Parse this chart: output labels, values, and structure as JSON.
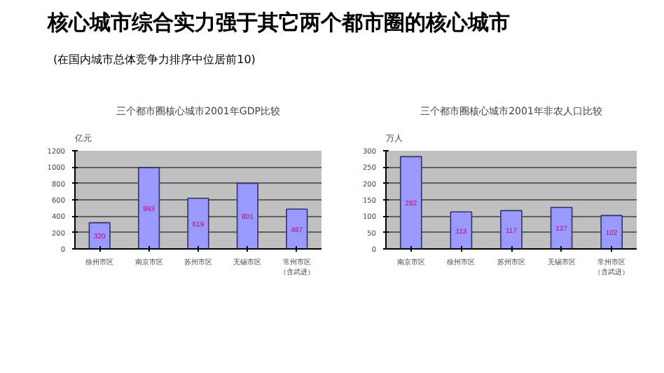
{
  "chart_data": [
    {
      "type": "bar",
      "title": "三个都市圈核心城市2001年GDP比较",
      "ylabel": "亿元",
      "annotations": [
        "核心城市综合实力强于其它两个都市圈的核心城市",
        "(在国内城市总体竞争力排序中位居前10)"
      ],
      "categories": [
        "徐州市区",
        "南京市区",
        "苏州市区",
        "无锡市区",
        "常州市区（含武进）"
      ],
      "values": [
        320,
        993,
        619,
        801,
        487
      ],
      "color": "#9999ff",
      "data_labels": true,
      "ylim": [
        0,
        1200
      ],
      "yticks": [
        0,
        200,
        400,
        600,
        800,
        1000,
        1200
      ],
      "grid": "y"
    },
    {
      "type": "bar",
      "title": "三个都市圈核心城市2001年非农人口比较",
      "ylabel": "万人",
      "categories": [
        "南京市区",
        "徐州市区",
        "苏州市区",
        "无锡市区",
        "常州市区（含武进）"
      ],
      "values": [
        282,
        113,
        117,
        127,
        102
      ],
      "color": "#9999ff",
      "data_labels": true,
      "ylim": [
        0,
        300
      ],
      "yticks": [
        0,
        50,
        100,
        150,
        200,
        250,
        300
      ],
      "grid": "y"
    }
  ]
}
